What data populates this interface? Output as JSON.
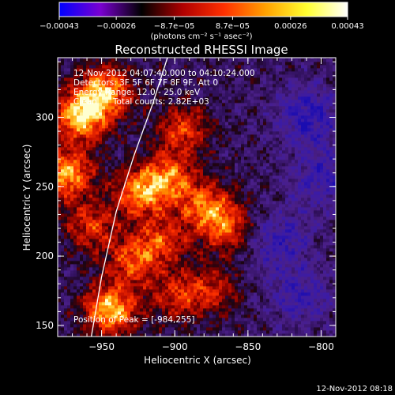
{
  "chart_data": {
    "type": "heatmap",
    "title": "Reconstructed RHESSI Image",
    "xlabel": "Heliocentric X (arcsec)",
    "ylabel": "Heliocentric Y (arcsec)",
    "xlim": [
      -980,
      -790
    ],
    "ylim": [
      142,
      343
    ],
    "xticks": [
      -950,
      -900,
      -850,
      -800
    ],
    "xtick_labels": [
      "−950",
      "−900",
      "−850",
      "−800"
    ],
    "yticks": [
      150,
      200,
      250,
      300
    ],
    "ytick_labels": [
      "150",
      "200",
      "250",
      "300"
    ],
    "colorbar": {
      "range": [
        -0.00043,
        0.00043
      ],
      "ticks": [
        -0.00043,
        -0.00026,
        -8.7e-05,
        8.7e-05,
        0.00026,
        0.00043
      ],
      "tick_labels": [
        "−0.00043",
        "−0.00026",
        "−8.7e−05",
        "8.7e−05",
        "0.00026",
        "0.00043"
      ],
      "unit_label": "(photons cm⁻² s⁻¹ asec⁻²)",
      "colors": [
        "#0000ff",
        "#7a00d0",
        "#000000",
        "#b00000",
        "#ff3000",
        "#ffa000",
        "#ffff30",
        "#ffffff"
      ]
    },
    "annotations": {
      "time_range": "12-Nov-2012 04:07:40.000 to 04:10:24.000",
      "detectors": "Detectors: 3F 5F 6F 7F 8F 9F, Att 0",
      "energy": "Energy Range: 12.0 - 25.0 keV",
      "method": "Clean      Total counts: 2.82E+03",
      "peak": "Position of Peak = [-984,255]"
    },
    "limb_curve": [
      [
        -957,
        142
      ],
      [
        -950,
        185
      ],
      [
        -940,
        232
      ],
      [
        -928,
        272
      ],
      [
        -915,
        310
      ],
      [
        -905,
        343
      ]
    ],
    "hot_regions": [
      {
        "x": -965,
        "y": 300,
        "level": 1.0
      },
      {
        "x": -948,
        "y": 318,
        "level": 0.85
      },
      {
        "x": -975,
        "y": 258,
        "level": 0.9
      },
      {
        "x": -945,
        "y": 160,
        "level": 0.95
      },
      {
        "x": -925,
        "y": 245,
        "level": 0.75
      },
      {
        "x": -905,
        "y": 255,
        "level": 0.7
      },
      {
        "x": -895,
        "y": 290,
        "level": 0.6
      },
      {
        "x": -880,
        "y": 235,
        "level": 0.65
      },
      {
        "x": -865,
        "y": 220,
        "level": 0.6
      },
      {
        "x": -910,
        "y": 210,
        "level": 0.55
      },
      {
        "x": -930,
        "y": 195,
        "level": 0.6
      },
      {
        "x": -900,
        "y": 170,
        "level": 0.5
      },
      {
        "x": -958,
        "y": 220,
        "level": 0.55
      },
      {
        "x": -875,
        "y": 175,
        "level": 0.45
      }
    ],
    "cold_regions": [
      {
        "x": -810,
        "y": 300,
        "level": 0.6
      },
      {
        "x": -830,
        "y": 210,
        "level": 0.5
      },
      {
        "x": -815,
        "y": 170,
        "level": 0.45
      },
      {
        "x": -800,
        "y": 255,
        "level": 0.5
      }
    ]
  },
  "footer": {
    "timestamp": "12-Nov-2012 08:18"
  }
}
